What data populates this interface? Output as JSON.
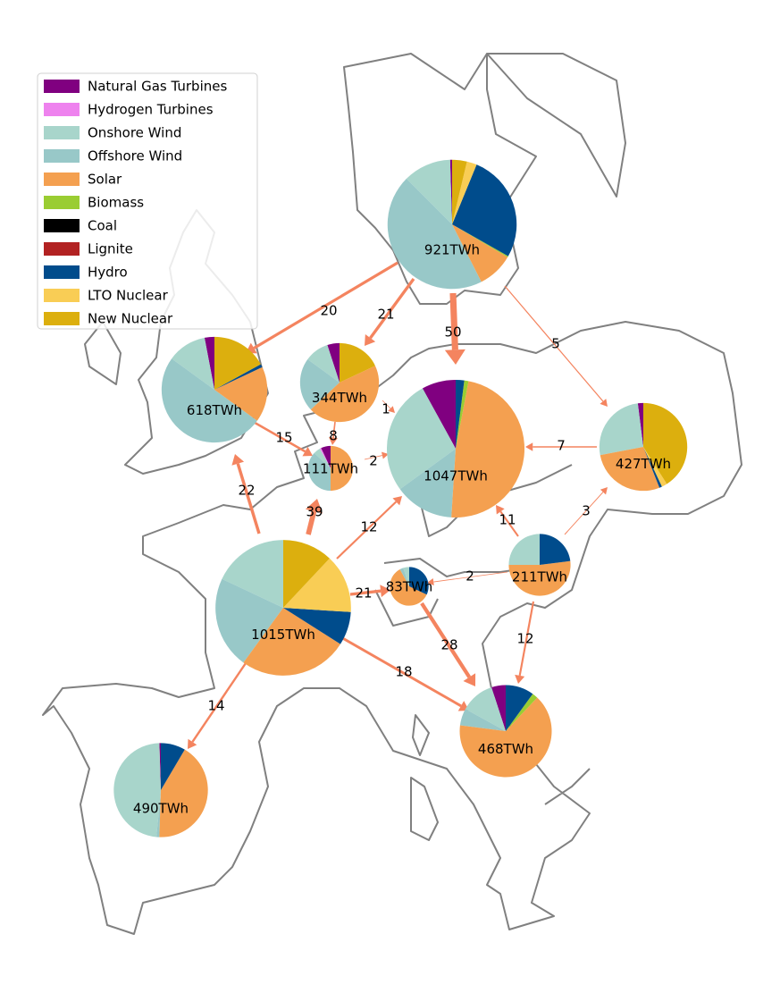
{
  "legend": [
    {
      "name": "Natural Gas Turbines",
      "color": "#800080"
    },
    {
      "name": "Hydrogen Turbines",
      "color": "#ee82ee"
    },
    {
      "name": "Onshore Wind",
      "color": "#a8d5cb"
    },
    {
      "name": "Offshore Wind",
      "color": "#98c8c8"
    },
    {
      "name": "Solar",
      "color": "#f4a050"
    },
    {
      "name": "Biomass",
      "color": "#9acd32"
    },
    {
      "name": "Coal",
      "color": "#000000"
    },
    {
      "name": "Lignite",
      "color": "#b22222"
    },
    {
      "name": "Hydro",
      "color": "#004c8c"
    },
    {
      "name": "LTO Nuclear",
      "color": "#f9cd55"
    },
    {
      "name": "New Nuclear",
      "color": "#dcaf0e"
    }
  ],
  "nodes": [
    {
      "total": 921,
      "total_label": "921TWh",
      "shares": [
        0.5,
        0,
        12,
        45,
        9,
        0.3,
        0,
        0,
        27,
        2.5,
        3.7
      ]
    },
    {
      "total": 618,
      "total_label": "618TWh",
      "shares": [
        3,
        0,
        12,
        50,
        17,
        0,
        0,
        0,
        1,
        0,
        17
      ]
    },
    {
      "total": 344,
      "total_label": "344TWh",
      "shares": [
        5,
        0,
        10,
        22,
        45,
        0,
        0,
        0,
        0,
        0,
        18
      ]
    },
    {
      "total": 111,
      "total_label": "111TWh",
      "shares": [
        7,
        1,
        5,
        37,
        50,
        0,
        0,
        0,
        0,
        0,
        0
      ]
    },
    {
      "total": 1047,
      "total_label": "1047TWh",
      "shares": [
        8,
        0,
        27,
        14,
        48,
        1,
        0,
        0,
        2,
        0,
        0
      ]
    },
    {
      "total": 427,
      "total_label": "427TWh",
      "shares": [
        2,
        0,
        26,
        0,
        28,
        0,
        0,
        0,
        1,
        2,
        41
      ]
    },
    {
      "total": 1015,
      "total_label": "1015TWh",
      "shares": [
        0,
        0,
        18,
        22,
        26,
        0,
        0,
        0,
        8,
        14,
        12
      ]
    },
    {
      "total": 83,
      "total_label": "83TWh",
      "shares": [
        0,
        0,
        5,
        3,
        60,
        0,
        0,
        0,
        32,
        0,
        0
      ]
    },
    {
      "total": 211,
      "total_label": "211TWh",
      "shares": [
        0,
        0,
        25,
        0,
        52,
        0,
        0,
        0,
        23,
        0,
        0
      ]
    },
    {
      "total": 468,
      "total_label": "468TWh",
      "shares": [
        5,
        0,
        12,
        6,
        65,
        2,
        0,
        0,
        10,
        0,
        0
      ]
    },
    {
      "total": 490,
      "total_label": "490TWh",
      "shares": [
        0.5,
        0,
        48,
        1,
        42,
        0,
        0,
        0,
        8.5,
        0,
        0
      ]
    }
  ],
  "flows": [
    20,
    21,
    50,
    5,
    1,
    15,
    8,
    2,
    7,
    22,
    39,
    12,
    21,
    11,
    3,
    2,
    28,
    18,
    12,
    14
  ]
}
